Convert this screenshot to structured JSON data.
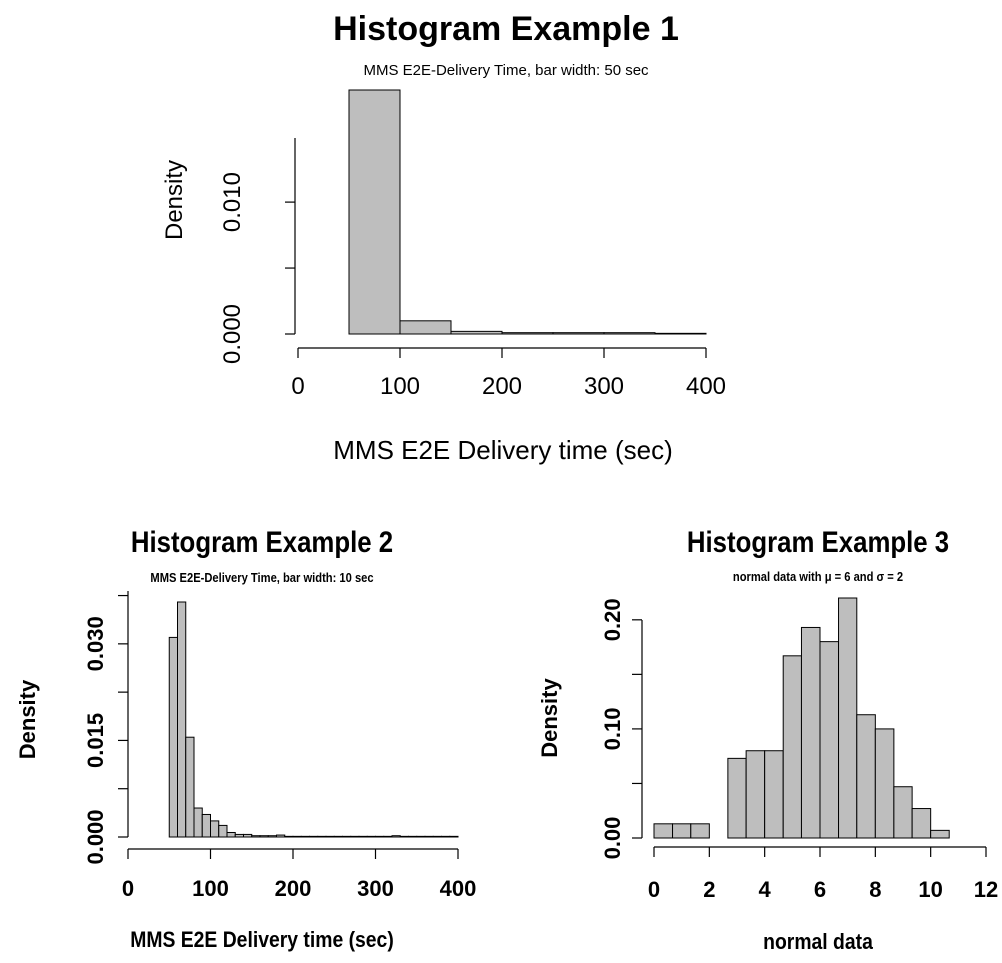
{
  "chart_data": [
    {
      "type": "bar",
      "title": "Histogram Example 1",
      "subtitle": "MMS E2E-Delivery Time, bar width: 50 sec",
      "xlabel": "MMS E2E Delivery time (sec)",
      "ylabel": "Density",
      "x_ticks": [
        "0",
        "100",
        "200",
        "300",
        "400"
      ],
      "y_ticks": [
        "0.000",
        "0.010"
      ],
      "xlim": [
        0,
        400
      ],
      "ylim": [
        0,
        0.0185
      ],
      "grid": false,
      "bins": [
        {
          "x0": 0,
          "x1": 50,
          "density": 0.0
        },
        {
          "x0": 50,
          "x1": 100,
          "density": 0.0185
        },
        {
          "x0": 100,
          "x1": 150,
          "density": 0.001
        },
        {
          "x0": 150,
          "x1": 200,
          "density": 0.0002
        },
        {
          "x0": 200,
          "x1": 250,
          "density": 0.0001
        },
        {
          "x0": 250,
          "x1": 300,
          "density": 0.0001
        },
        {
          "x0": 300,
          "x1": 350,
          "density": 0.0001
        },
        {
          "x0": 350,
          "x1": 400,
          "density": 5e-05
        }
      ]
    },
    {
      "type": "bar",
      "title": "Histogram Example 2",
      "subtitle": "MMS E2E-Delivery Time, bar width: 10 sec",
      "xlabel": "MMS E2E Delivery time (sec)",
      "ylabel": "Density",
      "x_ticks": [
        "0",
        "100",
        "200",
        "300",
        "400"
      ],
      "y_ticks": [
        "0.000",
        "0.015",
        "0.030"
      ],
      "xlim": [
        0,
        400
      ],
      "ylim": [
        0,
        0.0365
      ],
      "grid": false,
      "bins": [
        {
          "x0": 50,
          "x1": 60,
          "density": 0.031
        },
        {
          "x0": 60,
          "x1": 70,
          "density": 0.0365
        },
        {
          "x0": 70,
          "x1": 80,
          "density": 0.0155
        },
        {
          "x0": 80,
          "x1": 90,
          "density": 0.0045
        },
        {
          "x0": 90,
          "x1": 100,
          "density": 0.0035
        },
        {
          "x0": 100,
          "x1": 110,
          "density": 0.0025
        },
        {
          "x0": 110,
          "x1": 120,
          "density": 0.0018
        },
        {
          "x0": 120,
          "x1": 130,
          "density": 0.0007
        },
        {
          "x0": 130,
          "x1": 140,
          "density": 0.0004
        },
        {
          "x0": 140,
          "x1": 150,
          "density": 0.0004
        },
        {
          "x0": 150,
          "x1": 160,
          "density": 0.0002
        },
        {
          "x0": 160,
          "x1": 170,
          "density": 0.0002
        },
        {
          "x0": 170,
          "x1": 180,
          "density": 0.0002
        },
        {
          "x0": 180,
          "x1": 190,
          "density": 0.0003
        },
        {
          "x0": 190,
          "x1": 200,
          "density": 0.0001
        },
        {
          "x0": 200,
          "x1": 210,
          "density": 0.0001
        },
        {
          "x0": 210,
          "x1": 220,
          "density": 0.0001
        },
        {
          "x0": 220,
          "x1": 230,
          "density": 0.0001
        },
        {
          "x0": 230,
          "x1": 240,
          "density": 0.0001
        },
        {
          "x0": 240,
          "x1": 250,
          "density": 0.0001
        },
        {
          "x0": 250,
          "x1": 260,
          "density": 0.0001
        },
        {
          "x0": 260,
          "x1": 270,
          "density": 0.0001
        },
        {
          "x0": 270,
          "x1": 280,
          "density": 0.0001
        },
        {
          "x0": 280,
          "x1": 290,
          "density": 0.0001
        },
        {
          "x0": 290,
          "x1": 300,
          "density": 0.0001
        },
        {
          "x0": 300,
          "x1": 310,
          "density": 0.0001
        },
        {
          "x0": 310,
          "x1": 320,
          "density": 0.0001
        },
        {
          "x0": 320,
          "x1": 330,
          "density": 0.0002
        },
        {
          "x0": 330,
          "x1": 340,
          "density": 0.0001
        },
        {
          "x0": 340,
          "x1": 350,
          "density": 0.0001
        },
        {
          "x0": 350,
          "x1": 360,
          "density": 0.0001
        },
        {
          "x0": 360,
          "x1": 370,
          "density": 0.0001
        },
        {
          "x0": 370,
          "x1": 380,
          "density": 0.0001
        },
        {
          "x0": 380,
          "x1": 390,
          "density": 0.0001
        },
        {
          "x0": 390,
          "x1": 400,
          "density": 0.0001
        }
      ]
    },
    {
      "type": "bar",
      "title": "Histogram Example 3",
      "subtitle": "normal data with μ = 6 and σ = 2",
      "xlabel": "normal data",
      "ylabel": "Density",
      "x_ticks": [
        "0",
        "2",
        "4",
        "6",
        "8",
        "10",
        "12"
      ],
      "y_ticks": [
        "0.00",
        "0.10",
        "0.20"
      ],
      "xlim": [
        0,
        12
      ],
      "ylim": [
        0,
        0.22
      ],
      "grid": false,
      "bins": [
        {
          "x0": 0.0,
          "x1": 0.67,
          "density": 0.013
        },
        {
          "x0": 0.67,
          "x1": 1.33,
          "density": 0.013
        },
        {
          "x0": 1.33,
          "x1": 2.0,
          "density": 0.013
        },
        {
          "x0": 2.0,
          "x1": 2.67,
          "density": 0.0
        },
        {
          "x0": 2.67,
          "x1": 3.33,
          "density": 0.073
        },
        {
          "x0": 3.33,
          "x1": 4.0,
          "density": 0.08
        },
        {
          "x0": 4.0,
          "x1": 4.67,
          "density": 0.08
        },
        {
          "x0": 4.67,
          "x1": 5.33,
          "density": 0.167
        },
        {
          "x0": 5.33,
          "x1": 6.0,
          "density": 0.193
        },
        {
          "x0": 6.0,
          "x1": 6.67,
          "density": 0.18
        },
        {
          "x0": 6.67,
          "x1": 7.33,
          "density": 0.22
        },
        {
          "x0": 7.33,
          "x1": 8.0,
          "density": 0.113
        },
        {
          "x0": 8.0,
          "x1": 8.67,
          "density": 0.1
        },
        {
          "x0": 8.67,
          "x1": 9.33,
          "density": 0.047
        },
        {
          "x0": 9.33,
          "x1": 10.0,
          "density": 0.027
        },
        {
          "x0": 10.0,
          "x1": 10.67,
          "density": 0.007
        },
        {
          "x0": 10.67,
          "x1": 11.33,
          "density": 0.0
        }
      ]
    }
  ],
  "colors": {
    "bar_fill": "#bebebe",
    "bar_stroke": "#000000",
    "axis": "#000000",
    "background": "#ffffff"
  }
}
